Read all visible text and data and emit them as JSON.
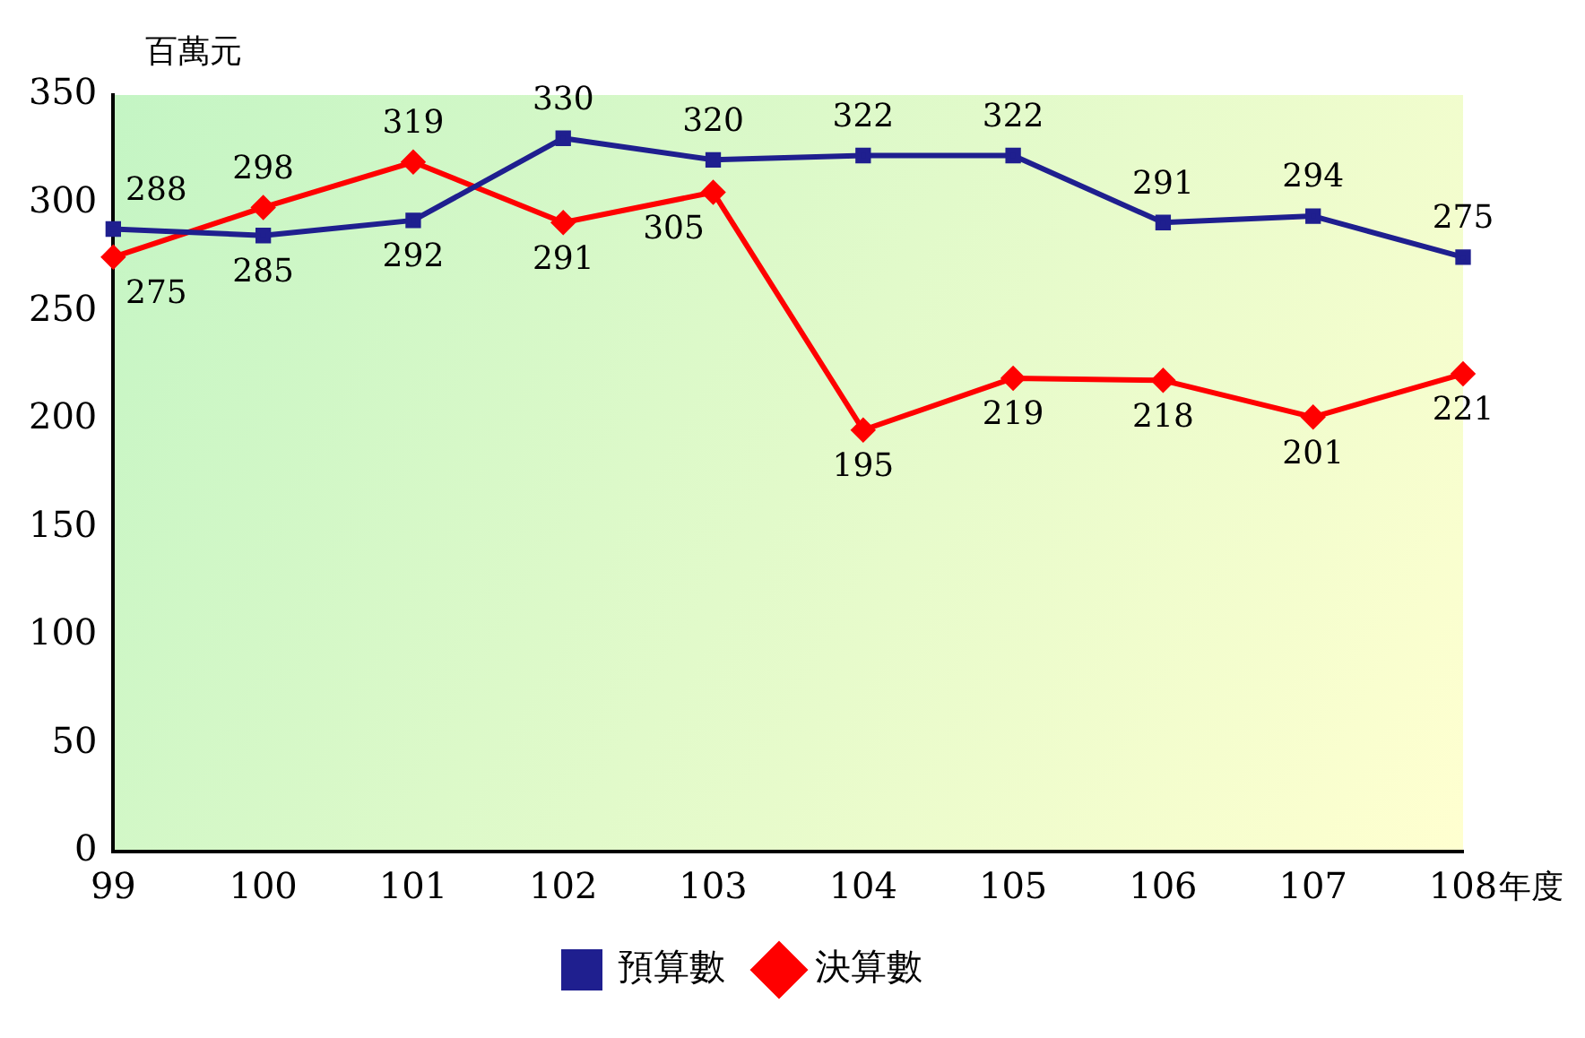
{
  "chart_data": {
    "type": "line",
    "ylabel": "百萬元",
    "xlabel": "年度",
    "categories": [
      "99",
      "100",
      "101",
      "102",
      "103",
      "104",
      "105",
      "106",
      "107",
      "108"
    ],
    "series": [
      {
        "name": "預算數",
        "color": "#1f1f8f",
        "marker": "square",
        "values": [
          288,
          285,
          292,
          330,
          320,
          322,
          322,
          291,
          294,
          275
        ]
      },
      {
        "name": "決算數",
        "color": "#ff0000",
        "marker": "diamond",
        "values": [
          275,
          298,
          319,
          291,
          305,
          195,
          219,
          218,
          201,
          221
        ]
      }
    ],
    "ylim": [
      0,
      350
    ],
    "yticks": [
      0,
      50,
      100,
      150,
      200,
      250,
      300,
      350
    ],
    "grid": false,
    "legend": "bottom",
    "data_labels": true,
    "line_style": "solid"
  }
}
